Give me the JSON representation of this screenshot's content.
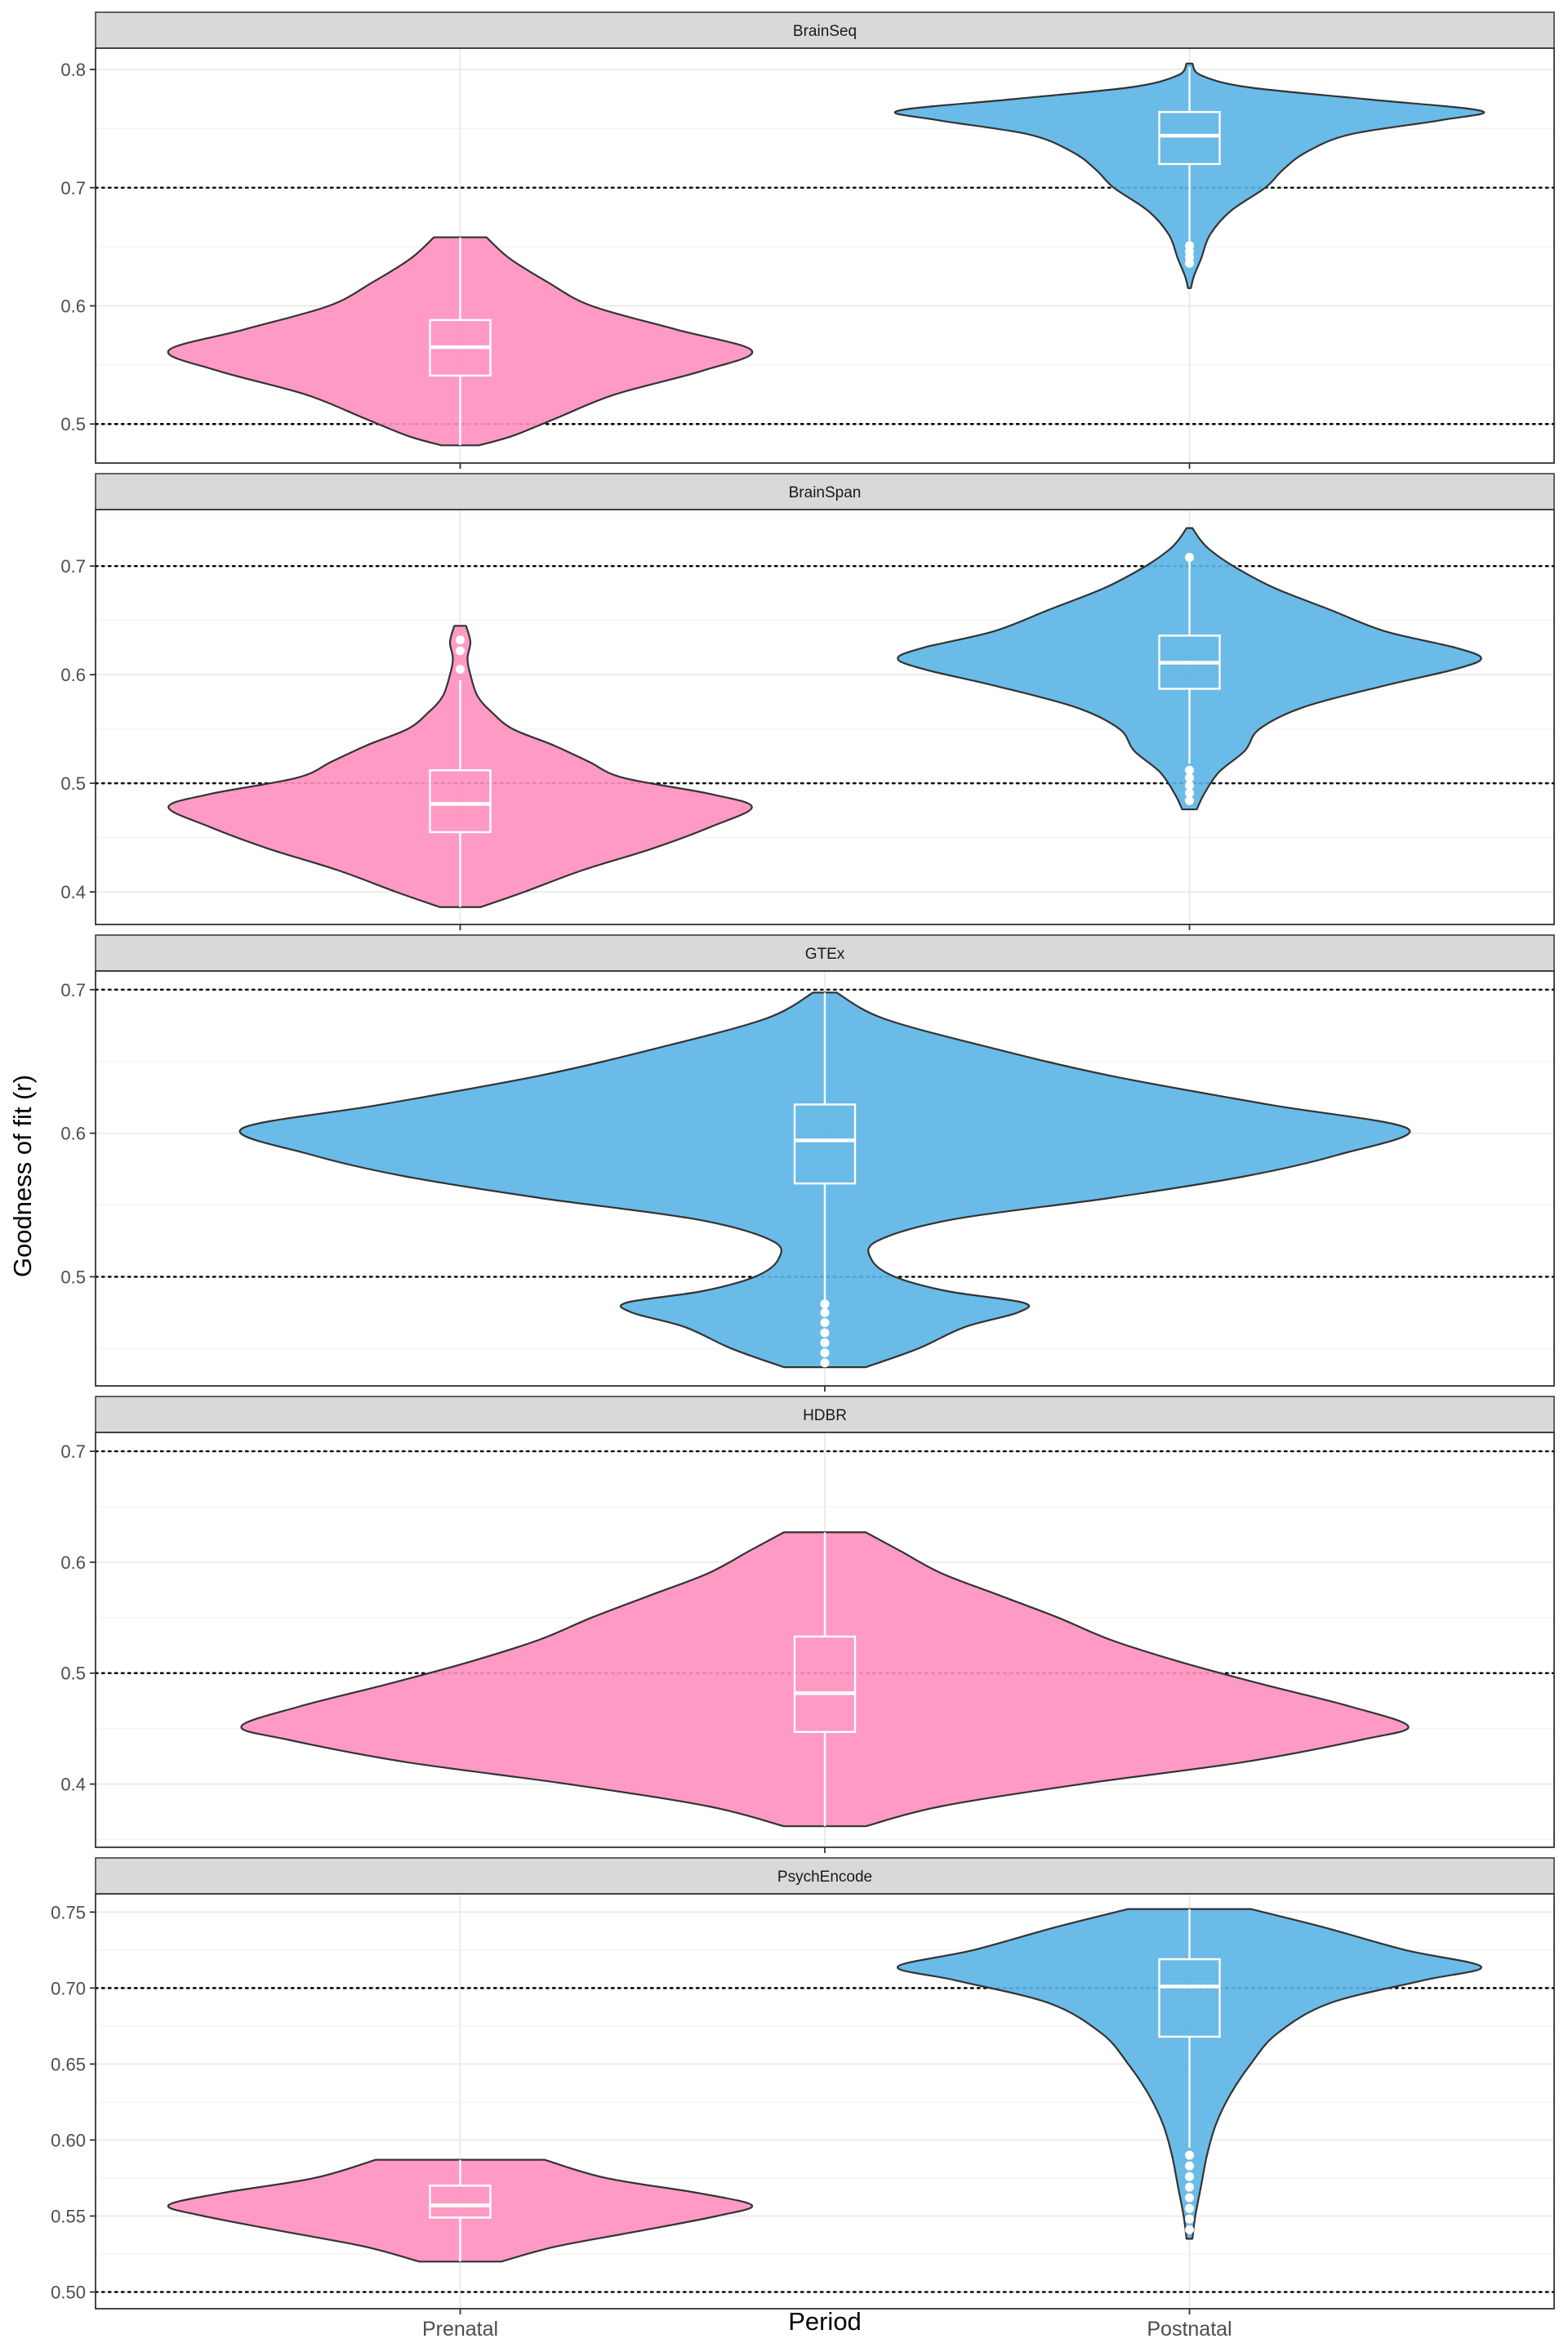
{
  "figure": {
    "ylabel": "Goodness of fit (r)",
    "xlabel": "Period"
  },
  "colors": {
    "Prenatal": "#ff8fbf",
    "Postnatal": "#5ab4e5",
    "outline": "#333333",
    "boxplot": "#ffffff",
    "strip_fill": "#d9d9d9",
    "reference_line": "#000000"
  },
  "chart_data": [
    {
      "type": "violin",
      "title": "BrainSeq",
      "categories": [
        "Prenatal",
        "Postnatal"
      ],
      "ylim": [
        0.467,
        0.818
      ],
      "yticks": [
        0.5,
        0.6,
        0.7,
        0.8
      ],
      "tick_decimals": 1,
      "reference_lines": [
        0.5,
        0.7
      ],
      "series": [
        {
          "category": "Prenatal",
          "range": [
            0.482,
            0.658
          ],
          "box": {
            "q1": 0.541,
            "median": 0.565,
            "q3": 0.588,
            "whisker_low": 0.482,
            "whisker_high": 0.658
          },
          "outliers": [],
          "density": [
            [
              0.482,
              0.065
            ],
            [
              0.49,
              0.18
            ],
            [
              0.505,
              0.33
            ],
            [
              0.525,
              0.53
            ],
            [
              0.545,
              0.83
            ],
            [
              0.562,
              1.0
            ],
            [
              0.58,
              0.74
            ],
            [
              0.6,
              0.45
            ],
            [
              0.62,
              0.3
            ],
            [
              0.64,
              0.17
            ],
            [
              0.658,
              0.09
            ]
          ]
        },
        {
          "category": "Postnatal",
          "range": [
            0.615,
            0.805
          ],
          "box": {
            "q1": 0.72,
            "median": 0.744,
            "q3": 0.764,
            "whisker_low": 0.655,
            "whisker_high": 0.802
          },
          "outliers": [
            0.651,
            0.646,
            0.641,
            0.636
          ],
          "density": [
            [
              0.615,
              0.005
            ],
            [
              0.625,
              0.015
            ],
            [
              0.64,
              0.04
            ],
            [
              0.66,
              0.07
            ],
            [
              0.68,
              0.14
            ],
            [
              0.7,
              0.26
            ],
            [
              0.715,
              0.32
            ],
            [
              0.73,
              0.4
            ],
            [
              0.745,
              0.55
            ],
            [
              0.757,
              0.86
            ],
            [
              0.765,
              1.0
            ],
            [
              0.775,
              0.6
            ],
            [
              0.785,
              0.2
            ],
            [
              0.795,
              0.04
            ],
            [
              0.805,
              0.01
            ]
          ]
        }
      ]
    },
    {
      "type": "violin",
      "title": "BrainSpan",
      "categories": [
        "Prenatal",
        "Postnatal"
      ],
      "ylim": [
        0.37,
        0.752
      ],
      "yticks": [
        0.4,
        0.5,
        0.6,
        0.7
      ],
      "tick_decimals": 1,
      "reference_lines": [
        0.5,
        0.7
      ],
      "series": [
        {
          "category": "Prenatal",
          "range": [
            0.386,
            0.648
          ],
          "box": {
            "q1": 0.455,
            "median": 0.481,
            "q3": 0.512,
            "whisker_low": 0.386,
            "whisker_high": 0.595
          },
          "outliers": [
            0.605,
            0.622,
            0.632
          ],
          "density": [
            [
              0.386,
              0.07
            ],
            [
              0.4,
              0.22
            ],
            [
              0.42,
              0.42
            ],
            [
              0.44,
              0.66
            ],
            [
              0.46,
              0.86
            ],
            [
              0.478,
              1.0
            ],
            [
              0.49,
              0.86
            ],
            [
              0.505,
              0.56
            ],
            [
              0.52,
              0.44
            ],
            [
              0.535,
              0.32
            ],
            [
              0.55,
              0.18
            ],
            [
              0.565,
              0.11
            ],
            [
              0.58,
              0.06
            ],
            [
              0.6,
              0.035
            ],
            [
              0.615,
              0.025
            ],
            [
              0.63,
              0.035
            ],
            [
              0.645,
              0.02
            ]
          ]
        },
        {
          "category": "Postnatal",
          "range": [
            0.476,
            0.735
          ],
          "box": {
            "q1": 0.587,
            "median": 0.611,
            "q3": 0.636,
            "whisker_low": 0.518,
            "whisker_high": 0.708
          },
          "outliers": [
            0.512,
            0.505,
            0.498,
            0.491,
            0.484,
            0.708
          ],
          "density": [
            [
              0.476,
              0.025
            ],
            [
              0.49,
              0.05
            ],
            [
              0.51,
              0.1
            ],
            [
              0.53,
              0.19
            ],
            [
              0.55,
              0.24
            ],
            [
              0.57,
              0.39
            ],
            [
              0.59,
              0.67
            ],
            [
              0.605,
              0.91
            ],
            [
              0.615,
              1.0
            ],
            [
              0.625,
              0.91
            ],
            [
              0.64,
              0.67
            ],
            [
              0.66,
              0.48
            ],
            [
              0.68,
              0.29
            ],
            [
              0.7,
              0.15
            ],
            [
              0.715,
              0.07
            ],
            [
              0.725,
              0.035
            ],
            [
              0.735,
              0.01
            ]
          ]
        }
      ]
    },
    {
      "type": "violin",
      "title": "GTEx",
      "categories": [
        "Postnatal"
      ],
      "ylim": [
        0.424,
        0.713
      ],
      "yticks": [
        0.5,
        0.6,
        0.7
      ],
      "tick_decimals": 1,
      "reference_lines": [
        0.5,
        0.7
      ],
      "series": [
        {
          "category": "Postnatal",
          "range": [
            0.437,
            0.698
          ],
          "box": {
            "q1": 0.565,
            "median": 0.595,
            "q3": 0.62,
            "whisker_low": 0.483,
            "whisker_high": 0.698
          },
          "outliers": [
            0.481,
            0.475,
            0.468,
            0.461,
            0.454,
            0.447,
            0.44
          ],
          "density": [
            [
              0.437,
              0.07
            ],
            [
              0.45,
              0.16
            ],
            [
              0.465,
              0.24
            ],
            [
              0.475,
              0.33
            ],
            [
              0.482,
              0.34
            ],
            [
              0.49,
              0.21
            ],
            [
              0.5,
              0.12
            ],
            [
              0.512,
              0.08
            ],
            [
              0.525,
              0.09
            ],
            [
              0.54,
              0.22
            ],
            [
              0.555,
              0.49
            ],
            [
              0.57,
              0.72
            ],
            [
              0.585,
              0.88
            ],
            [
              0.603,
              1.0
            ],
            [
              0.62,
              0.76
            ],
            [
              0.64,
              0.49
            ],
            [
              0.66,
              0.28
            ],
            [
              0.68,
              0.1
            ],
            [
              0.698,
              0.02
            ]
          ]
        }
      ]
    },
    {
      "type": "violin",
      "title": "HDBR",
      "categories": [
        "Prenatal"
      ],
      "ylim": [
        0.343,
        0.717
      ],
      "yticks": [
        0.4,
        0.5,
        0.6,
        0.7
      ],
      "tick_decimals": 1,
      "reference_lines": [
        0.5,
        0.7
      ],
      "series": [
        {
          "category": "Prenatal",
          "range": [
            0.362,
            0.627
          ],
          "box": {
            "q1": 0.447,
            "median": 0.482,
            "q3": 0.533,
            "whisker_low": 0.362,
            "whisker_high": 0.627
          },
          "outliers": [],
          "density": [
            [
              0.362,
              0.07
            ],
            [
              0.38,
              0.2
            ],
            [
              0.4,
              0.44
            ],
            [
              0.42,
              0.72
            ],
            [
              0.44,
              0.92
            ],
            [
              0.452,
              1.0
            ],
            [
              0.47,
              0.9
            ],
            [
              0.49,
              0.75
            ],
            [
              0.51,
              0.61
            ],
            [
              0.53,
              0.49
            ],
            [
              0.55,
              0.4
            ],
            [
              0.57,
              0.3
            ],
            [
              0.59,
              0.2
            ],
            [
              0.61,
              0.13
            ],
            [
              0.627,
              0.07
            ]
          ]
        }
      ]
    },
    {
      "type": "violin",
      "title": "PsychEncode",
      "categories": [
        "Prenatal",
        "Postnatal"
      ],
      "ylim": [
        0.489,
        0.762
      ],
      "yticks": [
        0.5,
        0.55,
        0.6,
        0.65,
        0.7,
        0.75
      ],
      "tick_decimals": 2,
      "reference_lines": [
        0.5,
        0.7
      ],
      "series": [
        {
          "category": "Prenatal",
          "range": [
            0.52,
            0.587
          ],
          "box": {
            "q1": 0.549,
            "median": 0.557,
            "q3": 0.57,
            "whisker_low": 0.52,
            "whisker_high": 0.587
          },
          "outliers": [],
          "density": [
            [
              0.52,
              0.14
            ],
            [
              0.53,
              0.33
            ],
            [
              0.54,
              0.61
            ],
            [
              0.55,
              0.88
            ],
            [
              0.557,
              1.0
            ],
            [
              0.565,
              0.82
            ],
            [
              0.575,
              0.5
            ],
            [
              0.587,
              0.29
            ]
          ]
        },
        {
          "category": "Postnatal",
          "range": [
            0.535,
            0.752
          ],
          "box": {
            "q1": 0.668,
            "median": 0.701,
            "q3": 0.719,
            "whisker_low": 0.595,
            "whisker_high": 0.752
          },
          "outliers": [
            0.59,
            0.583,
            0.576,
            0.569,
            0.562,
            0.555,
            0.548,
            0.541
          ],
          "density": [
            [
              0.535,
              0.01
            ],
            [
              0.55,
              0.02
            ],
            [
              0.57,
              0.04
            ],
            [
              0.59,
              0.06
            ],
            [
              0.61,
              0.09
            ],
            [
              0.63,
              0.14
            ],
            [
              0.65,
              0.21
            ],
            [
              0.67,
              0.3
            ],
            [
              0.69,
              0.48
            ],
            [
              0.705,
              0.8
            ],
            [
              0.714,
              1.0
            ],
            [
              0.725,
              0.74
            ],
            [
              0.74,
              0.46
            ],
            [
              0.752,
              0.21
            ]
          ]
        }
      ]
    }
  ]
}
